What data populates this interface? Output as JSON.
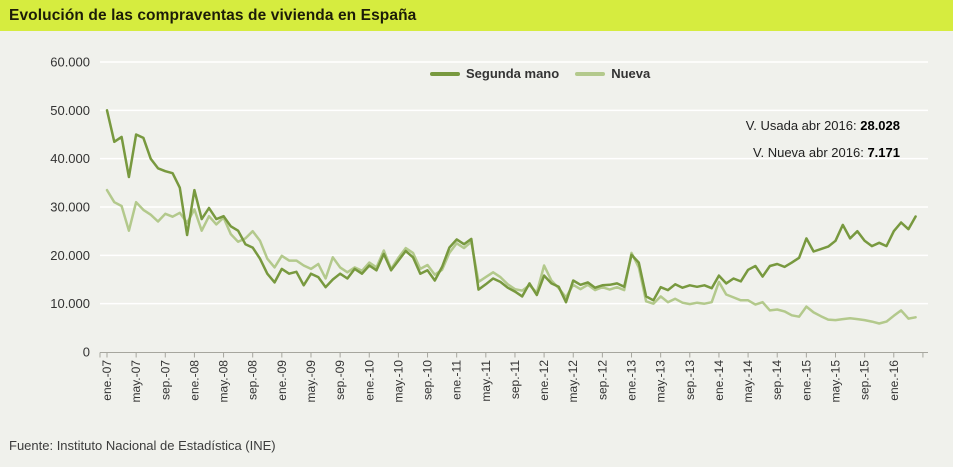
{
  "header": {
    "title": "Evolución de las compraventas de vivienda en España"
  },
  "footer": {
    "source": "Fuente: Instituto Nacional de Estadística (INE)"
  },
  "colors": {
    "title_bar_bg": "#d6ec3f",
    "background": "#f0f1ec",
    "gridline": "#ffffff",
    "axis": "#a6a69e",
    "tick_text": "#333333",
    "segunda_mano_line": "#78993f",
    "nueva_line": "#b3c98c"
  },
  "chart_data": {
    "type": "line",
    "title": "Evolución de las compraventas de vivienda en España",
    "x_frequency": "monthly",
    "x_start": "ene-2007",
    "x_end": "abr-2016",
    "ylim": [
      0,
      60000
    ],
    "grid": "horizontal-white",
    "legend_position": "top-center",
    "y_tick_labels": [
      "0",
      "10.000",
      "20.000",
      "30.000",
      "40.000",
      "50.000",
      "60.000"
    ],
    "x_tick_labels": [
      "ene.-07",
      "may.-07",
      "sep.-07",
      "ene.-08",
      "may.-08",
      "sep.-08",
      "ene.-09",
      "may.-09",
      "sep.-09",
      "ene.-10",
      "may.-10",
      "sep.-10",
      "ene.-11",
      "may.-11",
      "sep.-11",
      "ene.-12",
      "may.-12",
      "sep.-12",
      "ene.-13",
      "may.-13",
      "sep.-13",
      "ene.-14",
      "may.-14",
      "sep.-14",
      "ene.-15",
      "may.-15",
      "sep.-15",
      "ene.-16"
    ],
    "series": [
      {
        "name": "Segunda mano",
        "color": "#78993f",
        "values": [
          50000,
          43500,
          44500,
          36200,
          45000,
          44300,
          40000,
          38000,
          37400,
          37000,
          34000,
          24200,
          33500,
          27500,
          29800,
          27500,
          28100,
          26000,
          25100,
          22300,
          21600,
          19300,
          16200,
          14400,
          17200,
          16200,
          16600,
          13800,
          16200,
          15500,
          13400,
          15000,
          16200,
          15200,
          17200,
          16200,
          17900,
          16900,
          20300,
          16900,
          18900,
          20900,
          19600,
          16200,
          16900,
          14800,
          17600,
          21600,
          23300,
          22300,
          23400,
          12900,
          14000,
          15200,
          14500,
          13300,
          12500,
          11500,
          14200,
          11800,
          15800,
          14200,
          13500,
          10300,
          14800,
          13900,
          14400,
          13300,
          13800,
          13900,
          14200,
          13500,
          20100,
          18500,
          11500,
          10700,
          13400,
          12800,
          14000,
          13300,
          13800,
          13500,
          13800,
          13200,
          15800,
          14200,
          15200,
          14600,
          17000,
          17800,
          15600,
          17800,
          18200,
          17600,
          18500,
          19500,
          23500,
          20800,
          21300,
          21800,
          23000,
          26300,
          23500,
          25000,
          23000,
          21900,
          22600,
          21900,
          25000,
          26800,
          25400,
          28028
        ]
      },
      {
        "name": "Nueva",
        "color": "#b3c98c",
        "values": [
          33500,
          31000,
          30200,
          25100,
          31000,
          29400,
          28400,
          27000,
          28600,
          28000,
          28800,
          26700,
          29500,
          25100,
          28100,
          26400,
          27800,
          24400,
          22800,
          23500,
          25000,
          23000,
          19300,
          17500,
          19900,
          18900,
          18900,
          17900,
          17200,
          18200,
          15200,
          19600,
          17500,
          16500,
          17500,
          16800,
          18500,
          17500,
          21000,
          17200,
          19500,
          21500,
          20500,
          17200,
          18000,
          16000,
          17000,
          20500,
          22500,
          21500,
          22800,
          14500,
          15500,
          16500,
          15500,
          14000,
          13000,
          12700,
          13800,
          12300,
          17900,
          14800,
          13200,
          11300,
          13900,
          13000,
          13900,
          12800,
          13400,
          12900,
          13400,
          12800,
          20500,
          17500,
          10500,
          10000,
          11500,
          10300,
          11000,
          10200,
          9900,
          10200,
          10000,
          10300,
          14500,
          11900,
          11300,
          10700,
          10700,
          9800,
          10300,
          8600,
          8800,
          8400,
          7600,
          7300,
          9400,
          8200,
          7400,
          6700,
          6600,
          6800,
          7000,
          6800,
          6600,
          6300,
          5900,
          6300,
          7500,
          8600,
          6900,
          7171
        ]
      }
    ],
    "annotations": [
      {
        "label": "V. Usada abr 2016:",
        "value": "28.028"
      },
      {
        "label": "V. Nueva abr 2016:",
        "value": "7.171"
      }
    ]
  }
}
